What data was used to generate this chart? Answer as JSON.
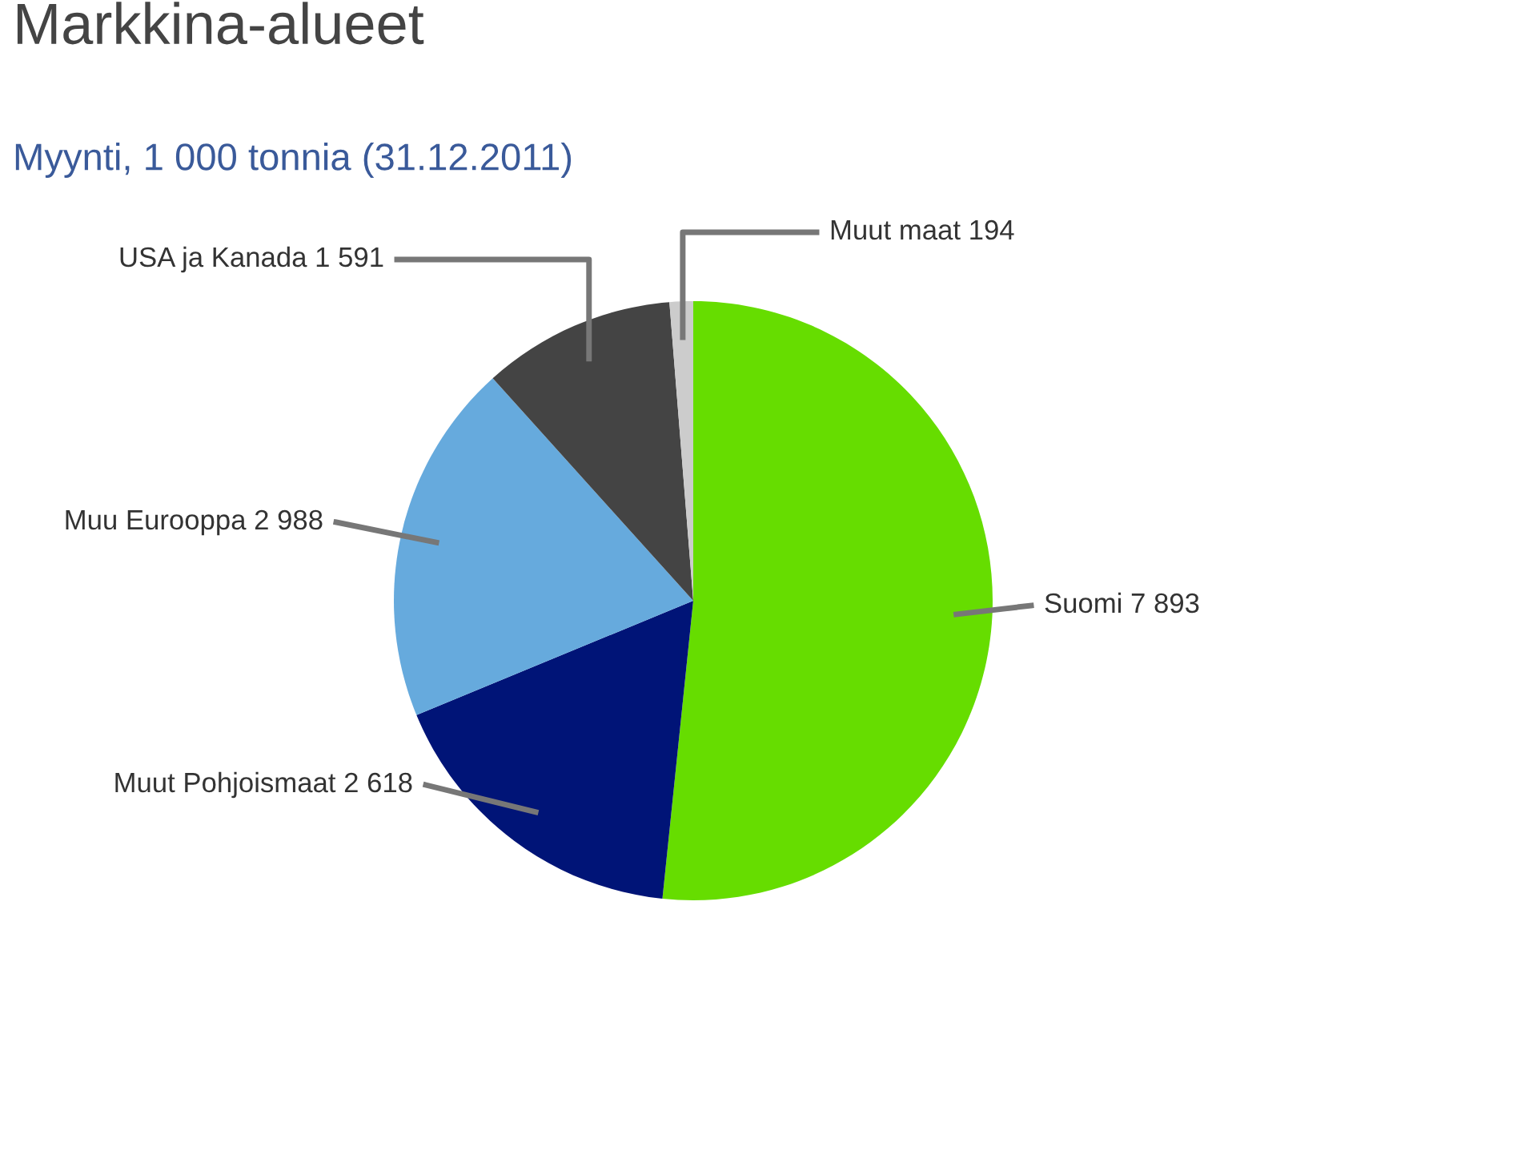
{
  "chart_data": {
    "type": "pie",
    "title": "Markkina-alueet",
    "subtitle": "Myynti, 1 000 tonnia (31.12.2011)",
    "categories": [
      "Suomi",
      "Muut Pohjoismaat",
      "Muu Eurooppa",
      "USA ja Kanada",
      "Muut maat"
    ],
    "values": [
      7893,
      2618,
      2988,
      1591,
      194
    ],
    "value_labels": [
      "7 893",
      "2 618",
      "2 988",
      "1 591",
      "194"
    ],
    "colors": [
      "#66dd00",
      "#001477",
      "#66aadd",
      "#444444",
      "#cccccc"
    ]
  }
}
